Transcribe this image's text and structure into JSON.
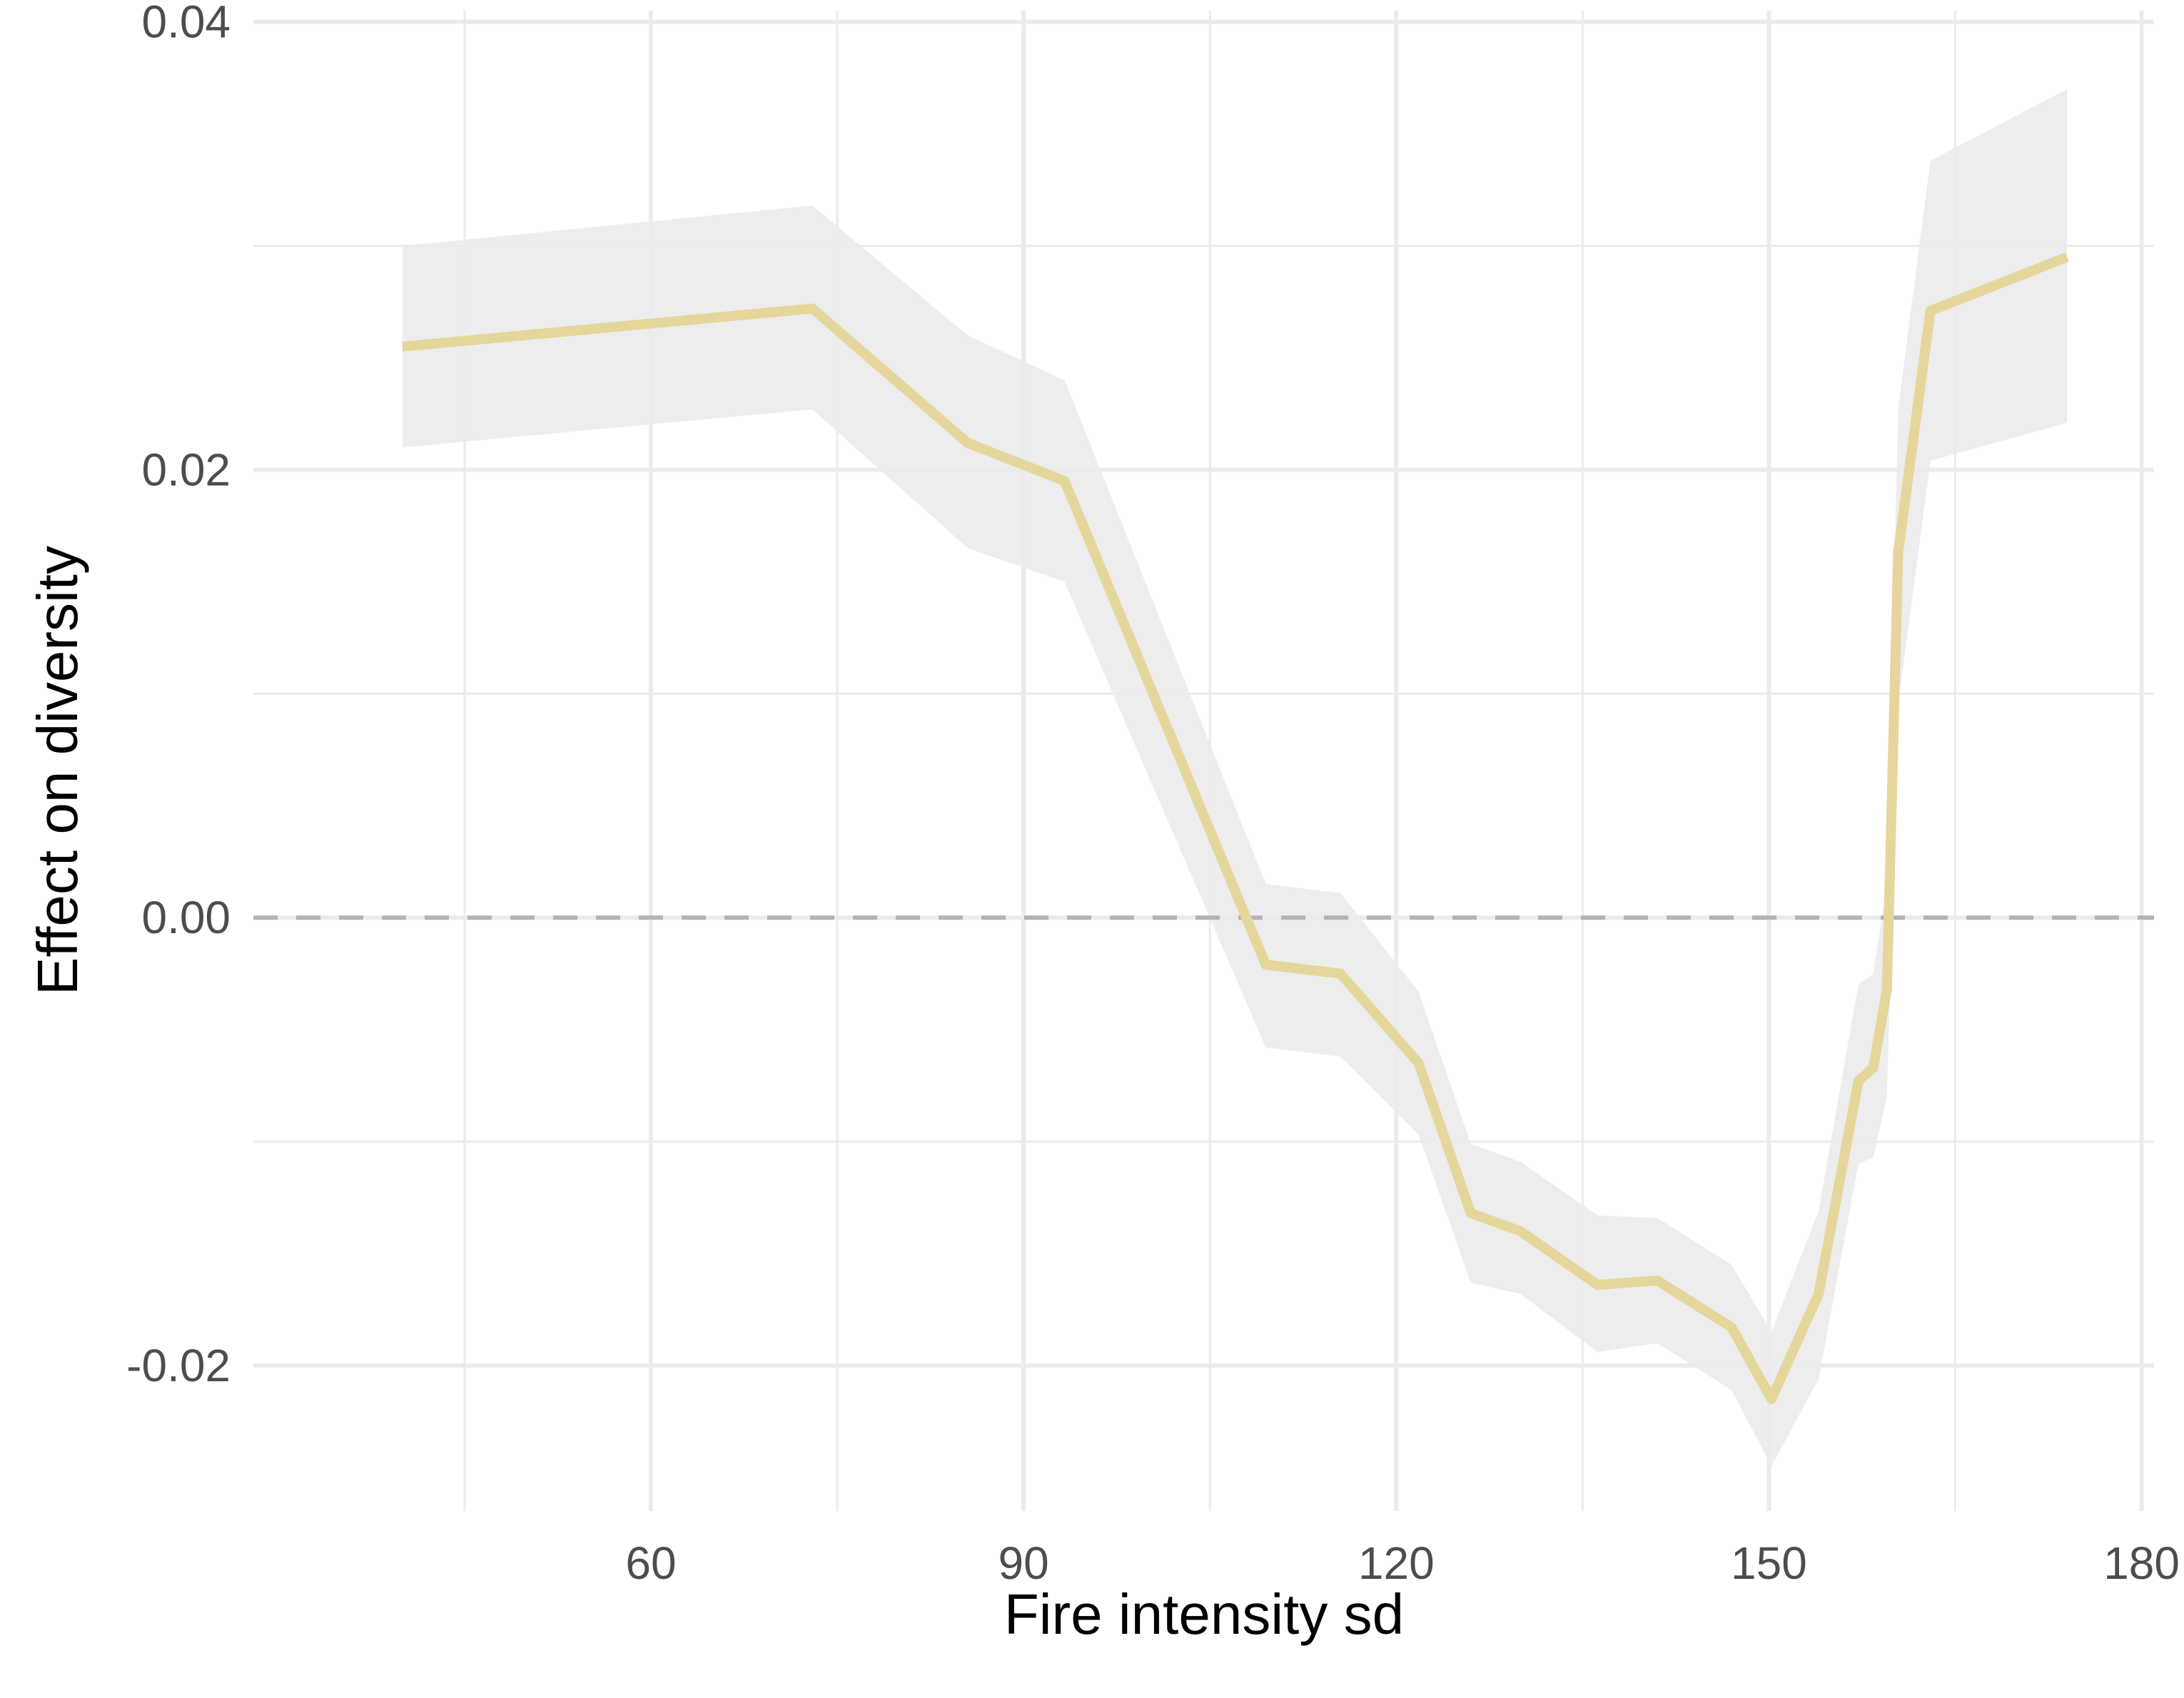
{
  "chart_data": {
    "type": "line",
    "title": "",
    "xlabel": "Fire intensity sd",
    "ylabel": "Effect on diversity",
    "xlim": [
      28,
      181
    ],
    "ylim": [
      -0.0265,
      0.0405
    ],
    "x_ticks": [
      60,
      90,
      120,
      150,
      180
    ],
    "x_tick_labels": [
      "60",
      "90",
      "120",
      "150",
      "180"
    ],
    "y_ticks": [
      -0.02,
      0.0,
      0.02,
      0.04
    ],
    "y_tick_labels": [
      "-0.02",
      "0.00",
      "0.02",
      "0.04"
    ],
    "grid": true,
    "legend": "none",
    "reference_line": {
      "y": 0.0,
      "style": "dashed",
      "color": "#b3b3b3"
    },
    "series": [
      {
        "color": "#e5d69c",
        "band_color": "#ebebeb",
        "x": [
          40.0,
          73.0,
          85.5,
          93.3,
          109.5,
          115.5,
          121.8,
          126.0,
          130.0,
          136.2,
          141.0,
          147.0,
          150.2,
          154.0,
          157.2,
          158.4,
          159.5,
          160.4,
          163.0,
          174.0
        ],
        "y": [
          0.0255,
          0.0272,
          0.0212,
          0.0195,
          -0.0021,
          -0.0025,
          -0.0065,
          -0.0132,
          -0.014,
          -0.0164,
          -0.0162,
          -0.0183,
          -0.0215,
          -0.0168,
          -0.0073,
          -0.0067,
          -0.0032,
          0.0163,
          0.0271,
          0.0295
        ],
        "lower": [
          0.021,
          0.0227,
          0.0165,
          0.015,
          -0.0058,
          -0.0062,
          -0.0097,
          -0.0163,
          -0.0168,
          -0.0194,
          -0.019,
          -0.0211,
          -0.0245,
          -0.0206,
          -0.011,
          -0.0107,
          -0.008,
          0.0095,
          0.0204,
          0.0221
        ],
        "upper": [
          0.03,
          0.0318,
          0.026,
          0.024,
          0.0015,
          0.0011,
          -0.0033,
          -0.0101,
          -0.0109,
          -0.0133,
          -0.0134,
          -0.0155,
          -0.0185,
          -0.0131,
          -0.003,
          -0.0025,
          0.0015,
          0.0227,
          0.0338,
          0.037
        ]
      }
    ]
  }
}
